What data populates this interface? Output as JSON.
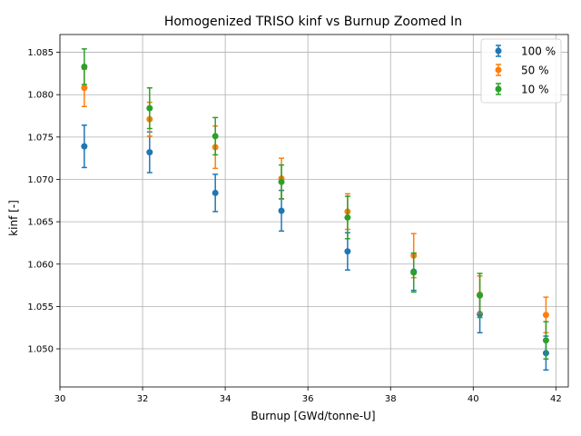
{
  "chart_data": {
    "type": "scatter",
    "title": "Homogenized TRISO kinf vs Burnup Zoomed In",
    "xlabel": "Burnup [GWd/tonne-U]",
    "ylabel": "kinf [-]",
    "xlim": [
      30.0,
      42.3
    ],
    "ylim": [
      1.0455,
      1.0871
    ],
    "xticks": [
      30,
      32,
      34,
      36,
      38,
      40,
      42
    ],
    "yticks": [
      1.05,
      1.055,
      1.06,
      1.065,
      1.07,
      1.075,
      1.08,
      1.085
    ],
    "xtick_labels": [
      "30",
      "32",
      "34",
      "36",
      "38",
      "40",
      "42"
    ],
    "ytick_labels": [
      "1.050",
      "1.055",
      "1.060",
      "1.065",
      "1.070",
      "1.075",
      "1.080",
      "1.085"
    ],
    "grid": true,
    "legend_position": "top-right",
    "x": [
      30.59,
      32.17,
      33.76,
      35.36,
      36.96,
      38.56,
      40.16,
      41.76
    ],
    "series": [
      {
        "name": "100 %",
        "color": "#1f77b4",
        "values": [
          1.0739,
          1.0732,
          1.0684,
          1.0663,
          1.0615,
          1.0591,
          1.0541,
          1.0495
        ],
        "errors": [
          0.0025,
          0.0024,
          0.0022,
          0.0024,
          0.0022,
          0.0022,
          0.0022,
          0.002
        ]
      },
      {
        "name": "50 %",
        "color": "#ff7f0e",
        "values": [
          1.0808,
          1.0771,
          1.0738,
          1.0701,
          1.0662,
          1.061,
          1.0564,
          1.054
        ],
        "errors": [
          0.0022,
          0.002,
          0.0025,
          0.0024,
          0.0021,
          0.0026,
          0.0022,
          0.0021
        ]
      },
      {
        "name": "10 %",
        "color": "#2ca02c",
        "values": [
          1.0833,
          1.0784,
          1.0751,
          1.0697,
          1.0655,
          1.059,
          1.0563,
          1.051
        ],
        "errors": [
          0.0021,
          0.0024,
          0.0022,
          0.002,
          0.0025,
          0.0023,
          0.0026,
          0.0022
        ]
      }
    ]
  }
}
